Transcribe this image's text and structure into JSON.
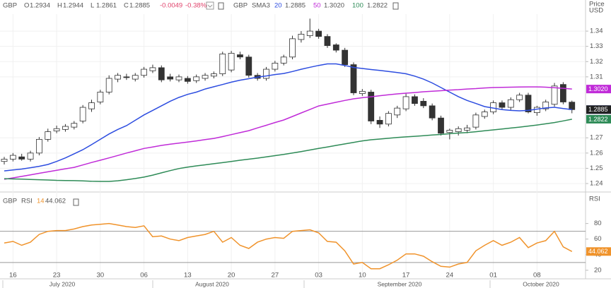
{
  "chart_data": {
    "type": "candlestick",
    "header": {
      "symbol": "GBP",
      "keys": [
        "O",
        "H",
        "L",
        "C"
      ],
      "change": "-0.0049",
      "change_pct": "-0.38%",
      "sma_label": "SMA3"
    },
    "price_axis_label": "Price",
    "currency": "USD",
    "categories": [
      null,
      "16",
      null,
      null,
      null,
      null,
      "23",
      null,
      null,
      null,
      null,
      "30",
      null,
      null,
      null,
      null,
      "06",
      null,
      null,
      null,
      null,
      "13",
      null,
      null,
      null,
      null,
      "20",
      null,
      null,
      null,
      null,
      "27",
      null,
      null,
      null,
      null,
      "03",
      null,
      null,
      null,
      null,
      "10",
      null,
      null,
      null,
      null,
      "17",
      null,
      null,
      null,
      null,
      "24",
      null,
      null,
      null,
      null,
      "01",
      null,
      null,
      null,
      null,
      "08",
      null,
      null,
      null,
      null
    ],
    "months": [
      "July 2020",
      "August 2020",
      "September 2020",
      "October 2020"
    ],
    "ylim": [
      1.2363,
      1.3581
    ],
    "yticks": [
      1.24,
      1.25,
      1.26,
      1.27,
      1.31,
      1.32,
      1.33,
      1.34
    ],
    "grid": true,
    "series": [
      {
        "type": "candlestick",
        "up_color": "#ffffff",
        "down_color": "#333333",
        "open": [
          1.2545,
          1.256,
          1.2575,
          1.256,
          1.26,
          1.269,
          1.2745,
          1.2755,
          1.277,
          1.281,
          1.289,
          1.2935,
          1.3,
          1.3085,
          1.31,
          1.3085,
          1.311,
          1.314,
          1.316,
          1.31,
          1.308,
          1.309,
          1.3075,
          1.309,
          1.3105,
          1.312,
          1.3145,
          1.3245,
          1.323,
          1.311,
          1.309,
          1.315,
          1.319,
          1.323,
          1.3345,
          1.337,
          1.34,
          1.3365,
          1.331,
          1.3275,
          1.318,
          1.299,
          1.3,
          1.2815,
          1.279,
          1.285,
          1.289,
          1.297,
          1.294,
          1.291,
          1.283,
          1.2735,
          1.274,
          1.275,
          1.277,
          1.284,
          1.287,
          1.293,
          1.29,
          1.295,
          1.298,
          1.2865,
          1.289,
          1.292,
          1.305,
          1.2934
        ],
        "high": [
          1.2575,
          1.26,
          1.2595,
          1.2615,
          1.2705,
          1.276,
          1.278,
          1.279,
          1.281,
          1.2915,
          1.295,
          1.3015,
          1.311,
          1.3125,
          1.312,
          1.3125,
          1.3165,
          1.318,
          1.3175,
          1.312,
          1.3115,
          1.3105,
          1.3115,
          1.3125,
          1.3135,
          1.3265,
          1.327,
          1.3265,
          1.3245,
          1.3125,
          1.3165,
          1.3205,
          1.3245,
          1.337,
          1.34,
          1.3482,
          1.3415,
          1.338,
          1.332,
          1.329,
          1.3195,
          1.302,
          1.3015,
          1.284,
          1.2875,
          1.291,
          1.299,
          1.2985,
          1.296,
          1.2925,
          1.2845,
          1.276,
          1.2775,
          1.2785,
          1.2865,
          1.2885,
          1.2945,
          1.2945,
          1.2965,
          1.2995,
          1.2995,
          1.291,
          1.295,
          1.306,
          1.3065,
          1.2944
        ],
        "low": [
          1.2525,
          1.2545,
          1.255,
          1.2545,
          1.2585,
          1.2675,
          1.273,
          1.274,
          1.2755,
          1.2795,
          1.287,
          1.292,
          1.2985,
          1.3065,
          1.308,
          1.307,
          1.3095,
          1.3125,
          1.3065,
          1.307,
          1.3065,
          1.3055,
          1.306,
          1.3075,
          1.309,
          1.3105,
          1.313,
          1.3215,
          1.3095,
          1.3075,
          1.3075,
          1.3135,
          1.3175,
          1.3215,
          1.3325,
          1.3355,
          1.335,
          1.329,
          1.326,
          1.3165,
          1.298,
          1.2975,
          1.279,
          1.2765,
          1.2775,
          1.283,
          1.2875,
          1.291,
          1.2895,
          1.2815,
          1.2715,
          1.269,
          1.2715,
          1.273,
          1.2755,
          1.2825,
          1.2855,
          1.2885,
          1.288,
          1.2935,
          1.286,
          1.2845,
          1.2875,
          1.2905,
          1.292,
          1.2861
        ],
        "close": [
          1.256,
          1.2585,
          1.256,
          1.26,
          1.269,
          1.274,
          1.276,
          1.2775,
          1.2795,
          1.29,
          1.293,
          1.3,
          1.309,
          1.311,
          1.3095,
          1.311,
          1.315,
          1.316,
          1.308,
          1.3085,
          1.31,
          1.307,
          1.31,
          1.311,
          1.312,
          1.325,
          1.3255,
          1.323,
          1.311,
          1.309,
          1.315,
          1.319,
          1.323,
          1.335,
          1.338,
          1.34,
          1.3365,
          1.3305,
          1.3275,
          1.318,
          1.2995,
          1.3005,
          1.281,
          1.279,
          1.286,
          1.2895,
          1.297,
          1.2925,
          1.291,
          1.283,
          1.273,
          1.275,
          1.276,
          1.2765,
          1.285,
          1.287,
          1.293,
          1.29,
          1.295,
          1.298,
          1.287,
          1.29,
          1.2935,
          1.304,
          1.2935,
          1.2885
        ]
      },
      {
        "type": "line",
        "name": "20",
        "color": "#2d4de0",
        "tag": "1.2885",
        "values": [
          1.2483,
          1.2489,
          1.2495,
          1.2504,
          1.2513,
          1.2525,
          1.2545,
          1.2568,
          1.2595,
          1.2622,
          1.2655,
          1.269,
          1.2725,
          1.2755,
          1.278,
          1.2815,
          1.285,
          1.288,
          1.291,
          1.294,
          1.2965,
          1.2985,
          1.3,
          1.302,
          1.3035,
          1.305,
          1.3065,
          1.3078,
          1.3088,
          1.3098,
          1.3106,
          1.3115,
          1.3122,
          1.3135,
          1.315,
          1.3163,
          1.3175,
          1.3185,
          1.3185,
          1.3175,
          1.3162,
          1.3155,
          1.3148,
          1.3142,
          1.3135,
          1.3128,
          1.312,
          1.3105,
          1.3085,
          1.306,
          1.303,
          1.3,
          1.297,
          1.2945,
          1.2925,
          1.2905,
          1.2895,
          1.2885,
          1.288,
          1.2877,
          1.288,
          1.2888,
          1.2896,
          1.29,
          1.2892,
          1.2885
        ]
      },
      {
        "type": "line",
        "name": "50",
        "color": "#c02bd8",
        "tag": "1.3020",
        "values": [
          1.2428,
          1.2437,
          1.2447,
          1.2457,
          1.2467,
          1.2477,
          1.2487,
          1.2497,
          1.2506,
          1.2522,
          1.2538,
          1.2553,
          1.2568,
          1.2584,
          1.26,
          1.2615,
          1.263,
          1.264,
          1.265,
          1.2658,
          1.2665,
          1.2672,
          1.268,
          1.2688,
          1.2696,
          1.2708,
          1.2721,
          1.2734,
          1.2747,
          1.2765,
          1.2782,
          1.28,
          1.2817,
          1.284,
          1.2863,
          1.2886,
          1.2909,
          1.2921,
          1.2933,
          1.2945,
          1.2956,
          1.2963,
          1.2969,
          1.2976,
          1.2982,
          1.2988,
          1.2993,
          1.2997,
          1.3002,
          1.3006,
          1.3009,
          1.3013,
          1.3016,
          1.302,
          1.3023,
          1.3027,
          1.303,
          1.3031,
          1.3032,
          1.3033,
          1.3034,
          1.3034,
          1.3032,
          1.3029,
          1.3025,
          1.302
        ]
      },
      {
        "type": "line",
        "name": "100",
        "color": "#2e8b57",
        "tag": "1.2822",
        "values": [
          1.2432,
          1.243,
          1.2429,
          1.2427,
          1.2425,
          1.2423,
          1.2421,
          1.242,
          1.2419,
          1.2417,
          1.2415,
          1.2414,
          1.2414,
          1.2418,
          1.2425,
          1.2433,
          1.2442,
          1.2455,
          1.247,
          1.2485,
          1.2498,
          1.2508,
          1.2516,
          1.2523,
          1.253,
          1.2537,
          1.2545,
          1.2553,
          1.256,
          1.2567,
          1.2575,
          1.2583,
          1.2591,
          1.26,
          1.261,
          1.262,
          1.263,
          1.264,
          1.265,
          1.266,
          1.267,
          1.268,
          1.2687,
          1.2692,
          1.2697,
          1.2702,
          1.2706,
          1.271,
          1.2714,
          1.2718,
          1.2722,
          1.2727,
          1.2731,
          1.2735,
          1.274,
          1.2746,
          1.2752,
          1.2758,
          1.2764,
          1.277,
          1.2777,
          1.2784,
          1.2792,
          1.28,
          1.2811,
          1.2822
        ]
      }
    ],
    "rsi": {
      "title": "RSI",
      "period": 14,
      "color": "#f0932b",
      "ylim": [
        9,
        115
      ],
      "yticks": [
        20,
        40,
        60,
        80
      ],
      "levels": [
        70,
        30
      ],
      "values": [
        55,
        57,
        52,
        56,
        66,
        70,
        71,
        71,
        73,
        76,
        78,
        79,
        80,
        78,
        76,
        75,
        77,
        63,
        64,
        60,
        58,
        62,
        64,
        66,
        70,
        56,
        62,
        52,
        48,
        56,
        60,
        62,
        61,
        70,
        71,
        72,
        68,
        57,
        56,
        45,
        28,
        30,
        22,
        22,
        27,
        33,
        41,
        41,
        38,
        31,
        25,
        24,
        28,
        30,
        45,
        52,
        58,
        52,
        56,
        62,
        49,
        55,
        58,
        70,
        50,
        44.062
      ]
    }
  }
}
